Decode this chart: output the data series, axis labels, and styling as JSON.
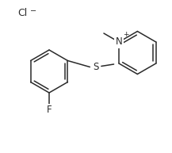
{
  "background": "#ffffff",
  "line_color": "#2a2a2a",
  "figsize": [
    2.17,
    1.93
  ],
  "dpi": 100,
  "cl_text": "Cl",
  "cl_sup": "−",
  "f_text": "F",
  "s_text": "S",
  "n_text": "N",
  "n_sup": "+"
}
